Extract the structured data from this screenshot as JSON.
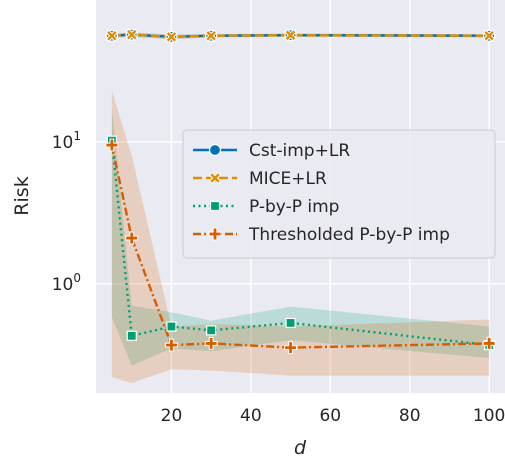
{
  "chart_data": {
    "type": "line",
    "xlabel": "d",
    "ylabel": "Risk",
    "xscale": "linear",
    "yscale": "log",
    "xlim": [
      1,
      104
    ],
    "ylim": [
      0.17,
      100
    ],
    "xticks": [
      20,
      40,
      60,
      80,
      100
    ],
    "xtick_labels": [
      "20",
      "40",
      "60",
      "80",
      "100"
    ],
    "yticks": [
      1,
      10
    ],
    "ytick_labels": [
      {
        "base": "10",
        "exp": "0"
      },
      {
        "base": "10",
        "exp": "1"
      }
    ],
    "grid": true,
    "legend_position": "center-right",
    "series": [
      {
        "name": "Cst-imp+LR",
        "color": "#0173b2",
        "dash": "solid",
        "marker": "circle",
        "x": [
          5,
          10,
          20,
          30,
          50,
          100
        ],
        "y": [
          56,
          57,
          55,
          56,
          56.5,
          56
        ],
        "band_low": [
          54,
          55,
          53,
          54.5,
          55,
          54.5
        ],
        "band_high": [
          58,
          59,
          57,
          57.5,
          58,
          57.5
        ]
      },
      {
        "name": "MICE+LR",
        "color": "#de8f05",
        "dash": "dashed",
        "marker": "x",
        "x": [
          5,
          10,
          20,
          30,
          50,
          100
        ],
        "y": [
          56,
          57,
          55,
          56,
          56.5,
          56
        ],
        "band_low": [
          54,
          55,
          53,
          54.5,
          55,
          54.5
        ],
        "band_high": [
          58,
          59,
          57,
          57.5,
          58,
          57.5
        ]
      },
      {
        "name": "P-by-P imp",
        "color": "#029e73",
        "dash": "dotted",
        "marker": "square",
        "x": [
          5,
          10,
          20,
          30,
          50,
          100
        ],
        "y": [
          10.2,
          0.43,
          0.5,
          0.47,
          0.53,
          0.37
        ],
        "band_low": [
          0.58,
          0.265,
          0.35,
          0.335,
          0.4,
          0.3
        ],
        "band_high": [
          17,
          0.7,
          0.63,
          0.55,
          0.69,
          0.5
        ]
      },
      {
        "name": "Thresholded P-by-P imp",
        "color": "#d55e00",
        "dash": "dashdot",
        "marker": "plus",
        "x": [
          5,
          10,
          20,
          30,
          50,
          100
        ],
        "y": [
          9.5,
          2.1,
          0.37,
          0.38,
          0.355,
          0.38
        ],
        "band_low": [
          0.22,
          0.2,
          0.25,
          0.245,
          0.225,
          0.225
        ],
        "band_high": [
          23,
          8,
          0.5,
          0.52,
          0.5,
          0.56
        ]
      }
    ]
  }
}
